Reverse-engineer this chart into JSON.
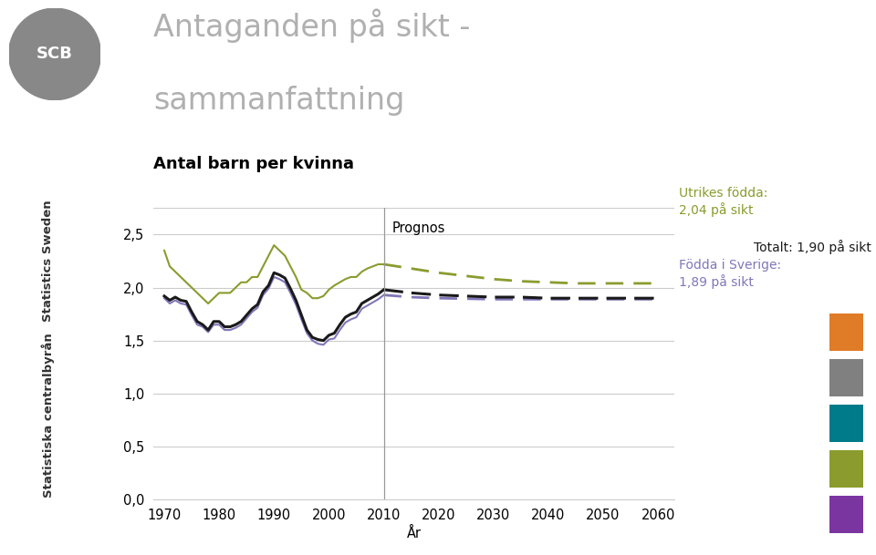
{
  "title_line1": "Antaganden på sikt -",
  "title_line2": "sammanfattning",
  "subtitle": "Antal barn per kvinna",
  "xlabel": "År",
  "title_color": "#b0b0b0",
  "subtitle_color": "#000000",
  "ylim": [
    0.0,
    2.75
  ],
  "yticks": [
    0.0,
    0.5,
    1.0,
    1.5,
    2.0,
    2.5
  ],
  "ytick_labels": [
    "0,0",
    "0,5",
    "1,0",
    "1,5",
    "2,0",
    "2,5"
  ],
  "xlim": [
    1968,
    2063
  ],
  "xticks": [
    1970,
    1980,
    1990,
    2000,
    2010,
    2020,
    2030,
    2040,
    2050,
    2060
  ],
  "prognos_x": 2010,
  "background_color": "#ffffff",
  "grid_color": "#cccccc",
  "total_color": "#1a1a1a",
  "fodda_sverige_color": "#8077B8",
  "utrikes_color": "#8B9B2E",
  "annotation_utrikes_line1": "Utrikes födda:",
  "annotation_utrikes_line2": "2,04 på sikt",
  "annotation_fodda_line1": "Födda i Sverige:",
  "annotation_fodda_line2": "1,89 på sikt",
  "annotation_totalt": "Totalt: 1,90 på sikt",
  "annotation_prognos": "Prognos",
  "color_boxes": [
    "#E07B28",
    "#808080",
    "#007B8A",
    "#8B9B2E",
    "#7B35A0"
  ],
  "total_historical": {
    "years": [
      1970,
      1971,
      1972,
      1973,
      1974,
      1975,
      1976,
      1977,
      1978,
      1979,
      1980,
      1981,
      1982,
      1983,
      1984,
      1985,
      1986,
      1987,
      1988,
      1989,
      1990,
      1991,
      1992,
      1993,
      1994,
      1995,
      1996,
      1997,
      1998,
      1999,
      2000,
      2001,
      2002,
      2003,
      2004,
      2005,
      2006,
      2007,
      2008,
      2009,
      2010
    ],
    "values": [
      1.92,
      1.88,
      1.91,
      1.88,
      1.87,
      1.77,
      1.68,
      1.65,
      1.6,
      1.68,
      1.68,
      1.63,
      1.63,
      1.65,
      1.68,
      1.74,
      1.8,
      1.84,
      1.96,
      2.02,
      2.14,
      2.12,
      2.09,
      1.99,
      1.88,
      1.74,
      1.6,
      1.53,
      1.51,
      1.5,
      1.55,
      1.57,
      1.65,
      1.72,
      1.75,
      1.77,
      1.85,
      1.88,
      1.91,
      1.94,
      1.98
    ]
  },
  "total_forecast": {
    "years": [
      2010,
      2015,
      2020,
      2025,
      2030,
      2035,
      2040,
      2045,
      2050,
      2055,
      2060
    ],
    "values": [
      1.98,
      1.95,
      1.93,
      1.92,
      1.91,
      1.91,
      1.9,
      1.9,
      1.9,
      1.9,
      1.9
    ]
  },
  "fodda_historical": {
    "years": [
      1970,
      1971,
      1972,
      1973,
      1974,
      1975,
      1976,
      1977,
      1978,
      1979,
      1980,
      1981,
      1982,
      1983,
      1984,
      1985,
      1986,
      1987,
      1988,
      1989,
      1990,
      1991,
      1992,
      1993,
      1994,
      1995,
      1996,
      1997,
      1998,
      1999,
      2000,
      2001,
      2002,
      2003,
      2004,
      2005,
      2006,
      2007,
      2008,
      2009,
      2010
    ],
    "values": [
      1.9,
      1.85,
      1.88,
      1.85,
      1.84,
      1.74,
      1.65,
      1.63,
      1.58,
      1.65,
      1.65,
      1.6,
      1.6,
      1.62,
      1.65,
      1.71,
      1.77,
      1.81,
      1.93,
      1.99,
      2.1,
      2.08,
      2.05,
      1.95,
      1.84,
      1.7,
      1.57,
      1.5,
      1.47,
      1.46,
      1.51,
      1.52,
      1.6,
      1.67,
      1.7,
      1.72,
      1.8,
      1.83,
      1.86,
      1.89,
      1.93
    ]
  },
  "fodda_forecast": {
    "years": [
      2010,
      2015,
      2020,
      2025,
      2030,
      2035,
      2040,
      2045,
      2050,
      2055,
      2060
    ],
    "values": [
      1.93,
      1.91,
      1.9,
      1.895,
      1.89,
      1.89,
      1.89,
      1.89,
      1.89,
      1.89,
      1.89
    ]
  },
  "utrikes_historical": {
    "years": [
      1970,
      1971,
      1972,
      1973,
      1974,
      1975,
      1976,
      1977,
      1978,
      1979,
      1980,
      1981,
      1982,
      1983,
      1984,
      1985,
      1986,
      1987,
      1988,
      1989,
      1990,
      1991,
      1992,
      1993,
      1994,
      1995,
      1996,
      1997,
      1998,
      1999,
      2000,
      2001,
      2002,
      2003,
      2004,
      2005,
      2006,
      2007,
      2008,
      2009,
      2010
    ],
    "values": [
      2.35,
      2.2,
      2.15,
      2.1,
      2.05,
      2.0,
      1.95,
      1.9,
      1.85,
      1.9,
      1.95,
      1.95,
      1.95,
      2.0,
      2.05,
      2.05,
      2.1,
      2.1,
      2.2,
      2.3,
      2.4,
      2.35,
      2.3,
      2.2,
      2.1,
      1.98,
      1.95,
      1.9,
      1.9,
      1.92,
      1.98,
      2.02,
      2.05,
      2.08,
      2.1,
      2.1,
      2.15,
      2.18,
      2.2,
      2.22,
      2.22
    ]
  },
  "utrikes_forecast": {
    "years": [
      2010,
      2015,
      2020,
      2025,
      2030,
      2035,
      2040,
      2045,
      2050,
      2055,
      2060
    ],
    "values": [
      2.22,
      2.18,
      2.14,
      2.11,
      2.08,
      2.06,
      2.05,
      2.04,
      2.04,
      2.04,
      2.04
    ]
  }
}
